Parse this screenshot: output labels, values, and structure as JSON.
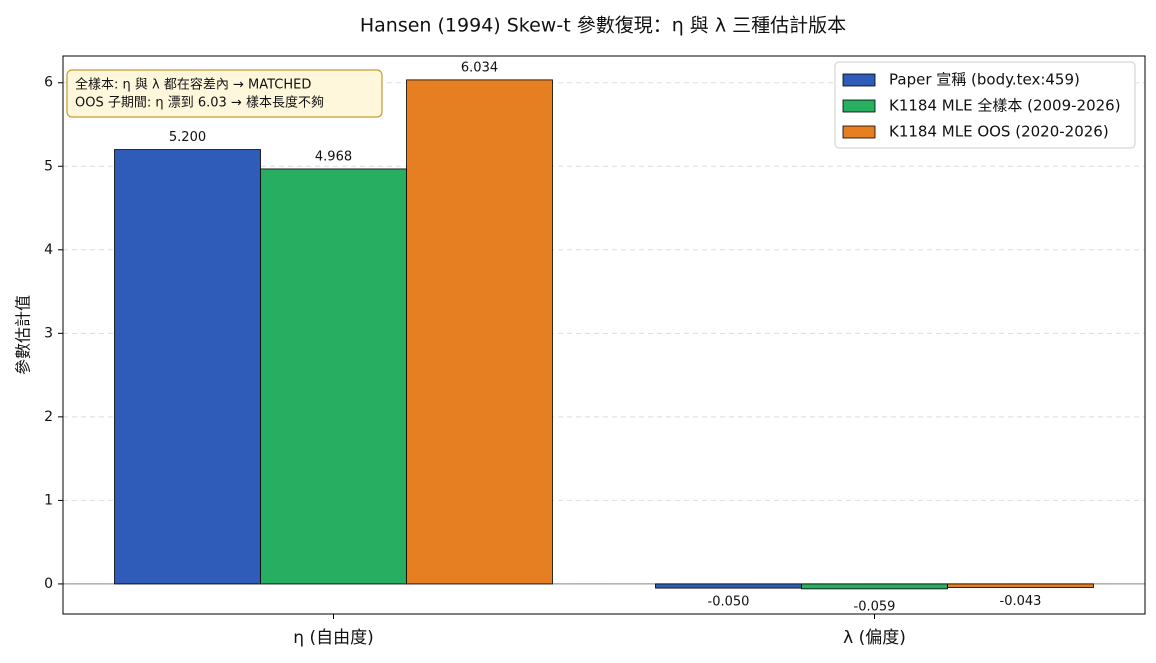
{
  "chart_data": {
    "type": "bar",
    "title": "Hansen (1994) Skew-t 參數復現：η 與 λ 三種估計版本",
    "y_label": "參數估計值",
    "categories": [
      "η (自由度)",
      "λ (偏度)"
    ],
    "series": [
      {
        "name": "Paper 宣稱 (body.tex:459)",
        "color": "#2e5cb8",
        "values": [
          5.2,
          -0.05
        ],
        "value_labels": [
          "5.200",
          "-0.050"
        ]
      },
      {
        "name": "K1184 MLE 全樣本 (2009-2026)",
        "color": "#27ae60",
        "values": [
          4.968,
          -0.059
        ],
        "value_labels": [
          "4.968",
          "-0.059"
        ]
      },
      {
        "name": "K1184 MLE OOS (2020-2026)",
        "color": "#e67e22",
        "values": [
          6.034,
          -0.043
        ],
        "value_labels": [
          "6.034",
          "-0.043"
        ]
      }
    ],
    "ylim": [
      -0.36,
      6.32
    ],
    "yticks": [
      0,
      1,
      2,
      3,
      4,
      5,
      6
    ],
    "grid": true,
    "legend": "upper right",
    "annotation": [
      "全樣本: η 與 λ 都在容差內 → MATCHED",
      "OOS 子期間: η 漂到 6.03 → 樣本長度不夠"
    ]
  }
}
